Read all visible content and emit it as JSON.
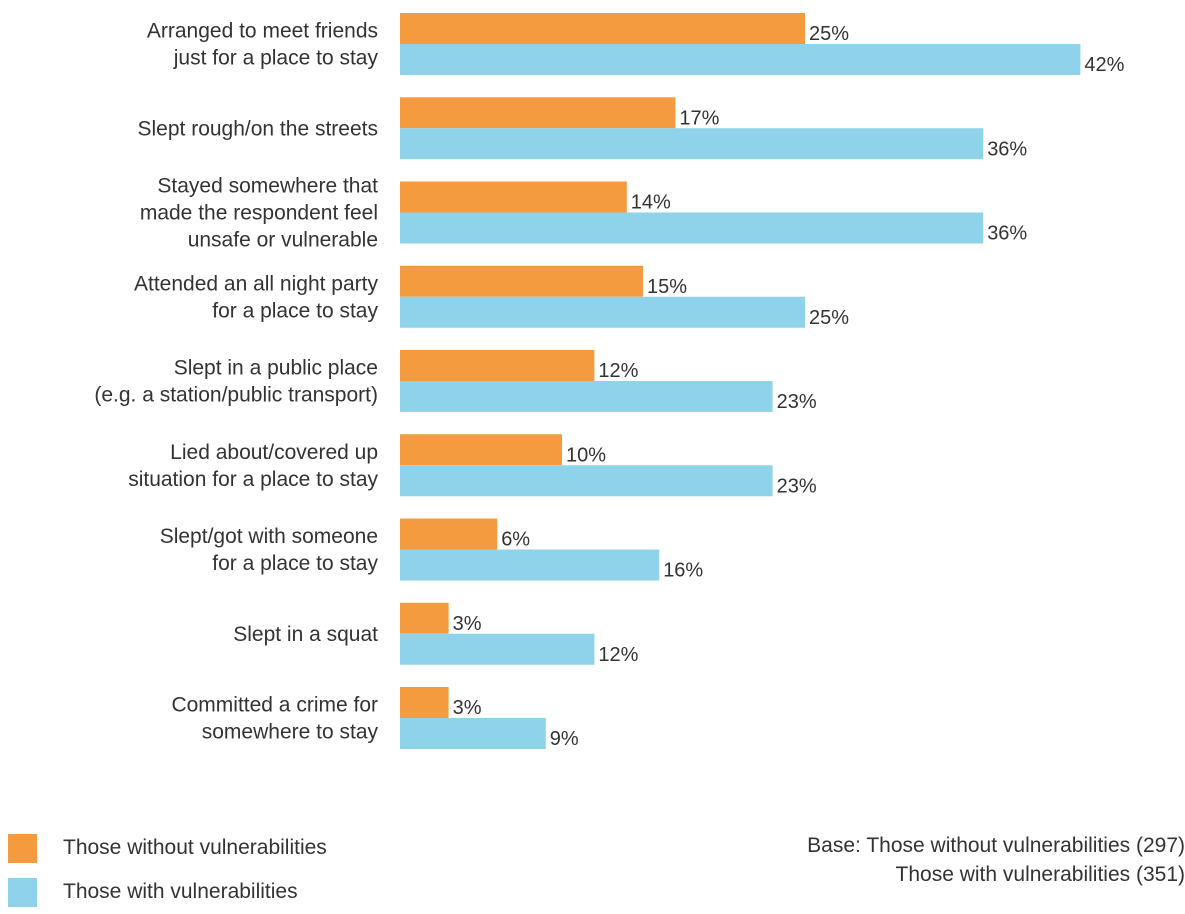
{
  "colors": {
    "without": "#f49b3f",
    "with": "#8ed3ea"
  },
  "legend": {
    "without_label": "Those without vulnerabilities",
    "with_label": "Those with vulnerabilities"
  },
  "base_note": {
    "line1": "Base: Those without vulnerabilities (297)",
    "line2": "Those with vulnerabilities (351)"
  },
  "chart_data": {
    "type": "bar",
    "orientation": "horizontal",
    "categories": [
      [
        "Arranged to meet friends",
        "just for a place to stay"
      ],
      [
        "Slept rough/on the streets"
      ],
      [
        "Stayed somewhere that",
        "made the respondent feel",
        "unsafe or vulnerable"
      ],
      [
        "Attended an all night party",
        "for a place to stay"
      ],
      [
        "Slept in a public place",
        "(e.g. a station/public transport)"
      ],
      [
        "Lied about/covered up",
        "situation for a place to stay"
      ],
      [
        "Slept/got with someone",
        "for a place to stay"
      ],
      [
        "Slept in a squat"
      ],
      [
        "Committed a crime for",
        "somewhere to stay"
      ]
    ],
    "series": [
      {
        "name": "Those without vulnerabilities",
        "values": [
          25,
          17,
          14,
          15,
          12,
          10,
          6,
          3,
          3
        ]
      },
      {
        "name": "Those with vulnerabilities",
        "values": [
          42,
          36,
          36,
          25,
          23,
          23,
          16,
          12,
          9
        ]
      }
    ],
    "value_suffix": "%",
    "xlim": [
      0,
      50
    ],
    "grid": false,
    "legend_position": "bottom-left"
  }
}
